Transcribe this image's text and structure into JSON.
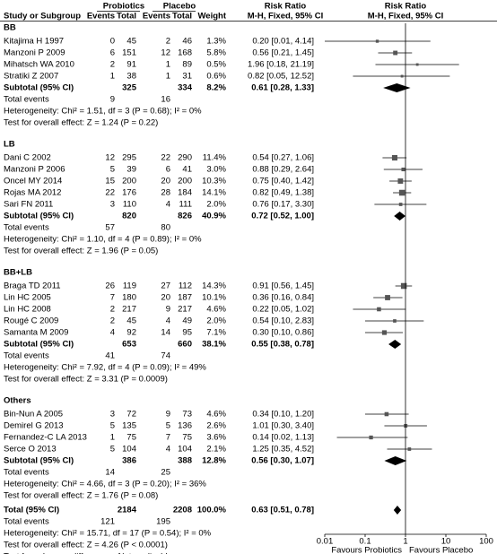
{
  "chart_data": {
    "type": "forest",
    "headers": {
      "group1": "Probiotics",
      "group2": "Placebo",
      "study": "Study or Subgroup",
      "events1": "Events",
      "total1": "Total",
      "events2": "Events",
      "total2": "Total",
      "weight": "Weight",
      "rr_title": "Risk Ratio",
      "rr_method": "M-H, Fixed, 95% CI",
      "plot_title": "Risk Ratio",
      "plot_method": "M-H, Fixed, 95% CI"
    },
    "groups": [
      {
        "name": "BB",
        "studies": [
          {
            "name": "Kitajima H 1997",
            "e1": 0,
            "n1": 45,
            "e2": 2,
            "n2": 46,
            "weight": 1.3,
            "weight_label": "1.3%",
            "rr": 0.2,
            "lo": 0.01,
            "hi": 4.14,
            "ci_label": "0.20 [0.01, 4.14]"
          },
          {
            "name": "Manzoni P 2009",
            "e1": 6,
            "n1": 151,
            "e2": 12,
            "n2": 168,
            "weight": 5.8,
            "weight_label": "5.8%",
            "rr": 0.56,
            "lo": 0.21,
            "hi": 1.45,
            "ci_label": "0.56 [0.21, 1.45]"
          },
          {
            "name": "Mihatsch WA 2010",
            "e1": 2,
            "n1": 91,
            "e2": 1,
            "n2": 89,
            "weight": 0.5,
            "weight_label": "0.5%",
            "rr": 1.96,
            "lo": 0.18,
            "hi": 21.19,
            "ci_label": "1.96 [0.18, 21.19]"
          },
          {
            "name": "Stratiki Z 2007",
            "e1": 1,
            "n1": 38,
            "e2": 1,
            "n2": 31,
            "weight": 0.6,
            "weight_label": "0.6%",
            "rr": 0.82,
            "lo": 0.05,
            "hi": 12.52,
            "ci_label": "0.82 [0.05, 12.52]"
          }
        ],
        "subtotal": {
          "label": "Subtotal (95% CI)",
          "n1": 325,
          "n2": 334,
          "weight": 8.2,
          "weight_label": "8.2%",
          "rr": 0.61,
          "lo": 0.28,
          "hi": 1.33,
          "ci_label": "0.61 [0.28, 1.33]"
        },
        "events": {
          "label": "Total events",
          "e1": 9,
          "e2": 16
        },
        "heterogeneity": "Heterogeneity: Chi² = 1.51, df = 3 (P = 0.68); I² = 0%",
        "effect": "Test for overall effect: Z = 1.24 (P = 0.22)"
      },
      {
        "name": "LB",
        "studies": [
          {
            "name": "Dani C 2002",
            "e1": 12,
            "n1": 295,
            "e2": 22,
            "n2": 290,
            "weight": 11.4,
            "weight_label": "11.4%",
            "rr": 0.54,
            "lo": 0.27,
            "hi": 1.06,
            "ci_label": "0.54 [0.27, 1.06]"
          },
          {
            "name": "Manzoni P 2006",
            "e1": 5,
            "n1": 39,
            "e2": 6,
            "n2": 41,
            "weight": 3.0,
            "weight_label": "3.0%",
            "rr": 0.88,
            "lo": 0.29,
            "hi": 2.64,
            "ci_label": "0.88 [0.29, 2.64]"
          },
          {
            "name": "Oncel MY 2014",
            "e1": 15,
            "n1": 200,
            "e2": 20,
            "n2": 200,
            "weight": 10.3,
            "weight_label": "10.3%",
            "rr": 0.75,
            "lo": 0.4,
            "hi": 1.42,
            "ci_label": "0.75 [0.40, 1.42]"
          },
          {
            "name": "Rojas MA 2012",
            "e1": 22,
            "n1": 176,
            "e2": 28,
            "n2": 184,
            "weight": 14.1,
            "weight_label": "14.1%",
            "rr": 0.82,
            "lo": 0.49,
            "hi": 1.38,
            "ci_label": "0.82 [0.49, 1.38]"
          },
          {
            "name": "Sari FN 2011",
            "e1": 3,
            "n1": 110,
            "e2": 4,
            "n2": 111,
            "weight": 2.0,
            "weight_label": "2.0%",
            "rr": 0.76,
            "lo": 0.17,
            "hi": 3.3,
            "ci_label": "0.76 [0.17, 3.30]"
          }
        ],
        "subtotal": {
          "label": "Subtotal (95% CI)",
          "n1": 820,
          "n2": 826,
          "weight": 40.9,
          "weight_label": "40.9%",
          "rr": 0.72,
          "lo": 0.52,
          "hi": 1.0,
          "ci_label": "0.72 [0.52, 1.00]"
        },
        "events": {
          "label": "Total events",
          "e1": 57,
          "e2": 80
        },
        "heterogeneity": "Heterogeneity: Chi² = 1.10, df = 4 (P = 0.89); I² = 0%",
        "effect": "Test for overall effect: Z = 1.96 (P = 0.05)"
      },
      {
        "name": "BB+LB",
        "studies": [
          {
            "name": "Braga TD 2011",
            "e1": 26,
            "n1": 119,
            "e2": 27,
            "n2": 112,
            "weight": 14.3,
            "weight_label": "14.3%",
            "rr": 0.91,
            "lo": 0.56,
            "hi": 1.45,
            "ci_label": "0.91 [0.56, 1.45]"
          },
          {
            "name": "Lin HC 2005",
            "e1": 7,
            "n1": 180,
            "e2": 20,
            "n2": 187,
            "weight": 10.1,
            "weight_label": "10.1%",
            "rr": 0.36,
            "lo": 0.16,
            "hi": 0.84,
            "ci_label": "0.36 [0.16, 0.84]"
          },
          {
            "name": "Lin HC 2008",
            "e1": 2,
            "n1": 217,
            "e2": 9,
            "n2": 217,
            "weight": 4.6,
            "weight_label": "4.6%",
            "rr": 0.22,
            "lo": 0.05,
            "hi": 1.02,
            "ci_label": "0.22 [0.05, 1.02]"
          },
          {
            "name": "Rougé C 2009",
            "e1": 2,
            "n1": 45,
            "e2": 4,
            "n2": 49,
            "weight": 2.0,
            "weight_label": "2.0%",
            "rr": 0.54,
            "lo": 0.1,
            "hi": 2.83,
            "ci_label": "0.54 [0.10, 2.83]"
          },
          {
            "name": "Samanta M 2009",
            "e1": 4,
            "n1": 92,
            "e2": 14,
            "n2": 95,
            "weight": 7.1,
            "weight_label": "7.1%",
            "rr": 0.3,
            "lo": 0.1,
            "hi": 0.86,
            "ci_label": "0.30 [0.10, 0.86]"
          }
        ],
        "subtotal": {
          "label": "Subtotal (95% CI)",
          "n1": 653,
          "n2": 660,
          "weight": 38.1,
          "weight_label": "38.1%",
          "rr": 0.55,
          "lo": 0.38,
          "hi": 0.78,
          "ci_label": "0.55 [0.38, 0.78]"
        },
        "events": {
          "label": "Total events",
          "e1": 41,
          "e2": 74
        },
        "heterogeneity": "Heterogeneity: Chi² = 7.92, df = 4 (P = 0.09); I² = 49%",
        "effect": "Test for overall effect: Z = 3.31 (P = 0.0009)"
      },
      {
        "name": "Others",
        "studies": [
          {
            "name": "Bin-Nun A 2005",
            "e1": 3,
            "n1": 72,
            "e2": 9,
            "n2": 73,
            "weight": 4.6,
            "weight_label": "4.6%",
            "rr": 0.34,
            "lo": 0.1,
            "hi": 1.2,
            "ci_label": "0.34 [0.10, 1.20]"
          },
          {
            "name": "Demirel G 2013",
            "e1": 5,
            "n1": 135,
            "e2": 5,
            "n2": 136,
            "weight": 2.6,
            "weight_label": "2.6%",
            "rr": 1.01,
            "lo": 0.3,
            "hi": 3.4,
            "ci_label": "1.01 [0.30, 3.40]"
          },
          {
            "name": "Fernandez-C LA 2013",
            "e1": 1,
            "n1": 75,
            "e2": 7,
            "n2": 75,
            "weight": 3.6,
            "weight_label": "3.6%",
            "rr": 0.14,
            "lo": 0.02,
            "hi": 1.13,
            "ci_label": "0.14 [0.02, 1.13]"
          },
          {
            "name": "Serce O 2013",
            "e1": 5,
            "n1": 104,
            "e2": 4,
            "n2": 104,
            "weight": 2.1,
            "weight_label": "2.1%",
            "rr": 1.25,
            "lo": 0.35,
            "hi": 4.52,
            "ci_label": "1.25 [0.35, 4.52]"
          }
        ],
        "subtotal": {
          "label": "Subtotal (95% CI)",
          "n1": 386,
          "n2": 388,
          "weight": 12.8,
          "weight_label": "12.8%",
          "rr": 0.56,
          "lo": 0.3,
          "hi": 1.07,
          "ci_label": "0.56 [0.30, 1.07]"
        },
        "events": {
          "label": "Total events",
          "e1": 14,
          "e2": 25
        },
        "heterogeneity": "Heterogeneity: Chi² = 4.66, df = 3 (P = 0.20); I² = 36%",
        "effect": "Test for overall effect: Z = 1.76 (P = 0.08)"
      }
    ],
    "overall": {
      "label": "Total (95% CI)",
      "n1": 2184,
      "n2": 2208,
      "weight": 100.0,
      "weight_label": "100.0%",
      "rr": 0.63,
      "lo": 0.51,
      "hi": 0.78,
      "ci_label": "0.63 [0.51, 0.78]"
    },
    "overall_events": {
      "label": "Total events",
      "e1": 121,
      "e2": 195
    },
    "overall_heterogeneity": "Heterogeneity: Chi² = 15.71, df = 17 (P = 0.54); I² = 0%",
    "overall_effect": "Test for overall effect: Z = 4.26 (P < 0.0001)",
    "subgroup_differences": "Test for subgroup differences: Not applicable",
    "xscale": "log",
    "xlim": [
      0.01,
      100
    ],
    "xticks": [
      0.01,
      0.1,
      1,
      10,
      100
    ],
    "xlabel_left": "Favours Probiotics",
    "xlabel_right": "Favours Placebo",
    "color": "#000000"
  }
}
